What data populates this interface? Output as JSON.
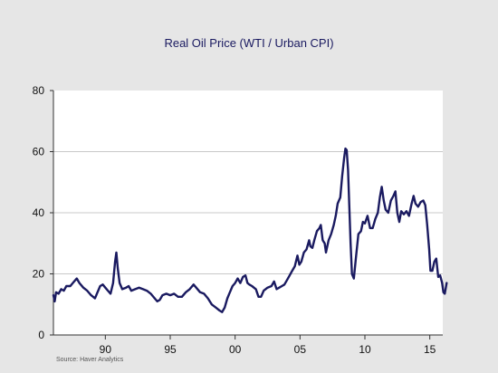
{
  "chart_data": {
    "type": "line",
    "title": "Real Oil Price (WTI / Urban CPI)",
    "source": "Source:    Haver Analytics",
    "xlabel": "",
    "ylabel": "",
    "xlim": [
      1986,
      2016
    ],
    "ylim": [
      0,
      80
    ],
    "yticks": [
      0,
      20,
      40,
      60,
      80
    ],
    "xticks": [
      {
        "value": 1990,
        "label": "90"
      },
      {
        "value": 1995,
        "label": "95"
      },
      {
        "value": 2000,
        "label": "00"
      },
      {
        "value": 2005,
        "label": "05"
      },
      {
        "value": 2010,
        "label": "10"
      },
      {
        "value": 2015,
        "label": "15"
      }
    ],
    "grid": true,
    "line_color": "#1a1a60",
    "series": [
      {
        "points": [
          [
            1986.0,
            13.0
          ],
          [
            1986.1,
            11.0
          ],
          [
            1986.2,
            14.0
          ],
          [
            1986.4,
            13.5
          ],
          [
            1986.6,
            15.0
          ],
          [
            1986.8,
            14.5
          ],
          [
            1987.0,
            16.0
          ],
          [
            1987.3,
            16.0
          ],
          [
            1987.6,
            17.5
          ],
          [
            1987.8,
            18.5
          ],
          [
            1988.0,
            17.0
          ],
          [
            1988.3,
            15.5
          ],
          [
            1988.6,
            14.5
          ],
          [
            1988.9,
            13.0
          ],
          [
            1989.2,
            12.0
          ],
          [
            1989.4,
            14.0
          ],
          [
            1989.6,
            16.0
          ],
          [
            1989.8,
            16.5
          ],
          [
            1990.0,
            15.5
          ],
          [
            1990.2,
            14.5
          ],
          [
            1990.4,
            13.5
          ],
          [
            1990.6,
            17.0
          ],
          [
            1990.75,
            24.0
          ],
          [
            1990.85,
            27.0
          ],
          [
            1990.95,
            22.0
          ],
          [
            1991.1,
            17.0
          ],
          [
            1991.3,
            15.0
          ],
          [
            1991.6,
            15.5
          ],
          [
            1991.8,
            16.0
          ],
          [
            1992.0,
            14.5
          ],
          [
            1992.3,
            15.0
          ],
          [
            1992.6,
            15.5
          ],
          [
            1992.9,
            15.0
          ],
          [
            1993.2,
            14.5
          ],
          [
            1993.5,
            13.5
          ],
          [
            1993.8,
            12.0
          ],
          [
            1994.0,
            11.0
          ],
          [
            1994.2,
            11.5
          ],
          [
            1994.4,
            13.0
          ],
          [
            1994.7,
            13.5
          ],
          [
            1995.0,
            13.0
          ],
          [
            1995.3,
            13.5
          ],
          [
            1995.6,
            12.5
          ],
          [
            1995.9,
            12.5
          ],
          [
            1996.2,
            14.0
          ],
          [
            1996.5,
            15.0
          ],
          [
            1996.8,
            16.5
          ],
          [
            1997.0,
            15.5
          ],
          [
            1997.3,
            14.0
          ],
          [
            1997.6,
            13.5
          ],
          [
            1997.9,
            12.0
          ],
          [
            1998.2,
            10.0
          ],
          [
            1998.5,
            9.0
          ],
          [
            1998.8,
            8.0
          ],
          [
            1999.0,
            7.5
          ],
          [
            1999.2,
            9.0
          ],
          [
            1999.4,
            12.0
          ],
          [
            1999.6,
            14.0
          ],
          [
            1999.8,
            16.0
          ],
          [
            2000.0,
            17.0
          ],
          [
            2000.2,
            18.5
          ],
          [
            2000.4,
            17.0
          ],
          [
            2000.6,
            19.0
          ],
          [
            2000.8,
            19.5
          ],
          [
            2000.95,
            17.0
          ],
          [
            2001.1,
            16.5
          ],
          [
            2001.3,
            16.0
          ],
          [
            2001.6,
            15.0
          ],
          [
            2001.8,
            12.5
          ],
          [
            2002.0,
            12.5
          ],
          [
            2002.2,
            14.5
          ],
          [
            2002.5,
            15.5
          ],
          [
            2002.8,
            16.0
          ],
          [
            2003.0,
            17.5
          ],
          [
            2003.2,
            15.0
          ],
          [
            2003.4,
            15.5
          ],
          [
            2003.6,
            16.0
          ],
          [
            2003.8,
            16.5
          ],
          [
            2004.0,
            18.0
          ],
          [
            2004.2,
            19.5
          ],
          [
            2004.4,
            21.0
          ],
          [
            2004.6,
            22.5
          ],
          [
            2004.8,
            26.0
          ],
          [
            2004.95,
            23.0
          ],
          [
            2005.1,
            24.0
          ],
          [
            2005.3,
            27.0
          ],
          [
            2005.5,
            28.0
          ],
          [
            2005.7,
            31.0
          ],
          [
            2005.8,
            29.0
          ],
          [
            2005.95,
            28.5
          ],
          [
            2006.1,
            31.0
          ],
          [
            2006.3,
            34.0
          ],
          [
            2006.5,
            35.0
          ],
          [
            2006.6,
            36.0
          ],
          [
            2006.75,
            31.0
          ],
          [
            2006.9,
            30.0
          ],
          [
            2007.0,
            27.0
          ],
          [
            2007.2,
            31.0
          ],
          [
            2007.4,
            33.0
          ],
          [
            2007.6,
            36.0
          ],
          [
            2007.75,
            39.0
          ],
          [
            2007.9,
            43.0
          ],
          [
            2008.1,
            45.0
          ],
          [
            2008.25,
            52.0
          ],
          [
            2008.4,
            58.0
          ],
          [
            2008.5,
            61.0
          ],
          [
            2008.6,
            60.5
          ],
          [
            2008.7,
            54.0
          ],
          [
            2008.8,
            42.0
          ],
          [
            2008.9,
            30.0
          ],
          [
            2009.0,
            20.0
          ],
          [
            2009.15,
            18.5
          ],
          [
            2009.3,
            25.0
          ],
          [
            2009.5,
            33.0
          ],
          [
            2009.7,
            34.0
          ],
          [
            2009.85,
            37.0
          ],
          [
            2010.0,
            36.5
          ],
          [
            2010.2,
            39.0
          ],
          [
            2010.4,
            35.0
          ],
          [
            2010.6,
            35.0
          ],
          [
            2010.8,
            38.0
          ],
          [
            2011.0,
            40.0
          ],
          [
            2011.15,
            45.0
          ],
          [
            2011.3,
            48.5
          ],
          [
            2011.45,
            44.0
          ],
          [
            2011.6,
            41.0
          ],
          [
            2011.8,
            40.0
          ],
          [
            2012.0,
            44.0
          ],
          [
            2012.2,
            45.5
          ],
          [
            2012.35,
            47.0
          ],
          [
            2012.5,
            40.0
          ],
          [
            2012.65,
            37.0
          ],
          [
            2012.8,
            40.5
          ],
          [
            2013.0,
            39.5
          ],
          [
            2013.2,
            40.5
          ],
          [
            2013.4,
            39.0
          ],
          [
            2013.6,
            43.0
          ],
          [
            2013.75,
            45.5
          ],
          [
            2013.9,
            43.0
          ],
          [
            2014.1,
            42.0
          ],
          [
            2014.3,
            43.5
          ],
          [
            2014.5,
            44.0
          ],
          [
            2014.65,
            42.5
          ],
          [
            2014.8,
            36.0
          ],
          [
            2014.95,
            28.0
          ],
          [
            2015.05,
            21.0
          ],
          [
            2015.2,
            21.0
          ],
          [
            2015.35,
            24.0
          ],
          [
            2015.5,
            25.0
          ],
          [
            2015.65,
            19.0
          ],
          [
            2015.8,
            19.5
          ],
          [
            2015.95,
            17.0
          ],
          [
            2016.05,
            14.0
          ],
          [
            2016.15,
            13.5
          ],
          [
            2016.3,
            17.0
          ]
        ]
      }
    ]
  }
}
